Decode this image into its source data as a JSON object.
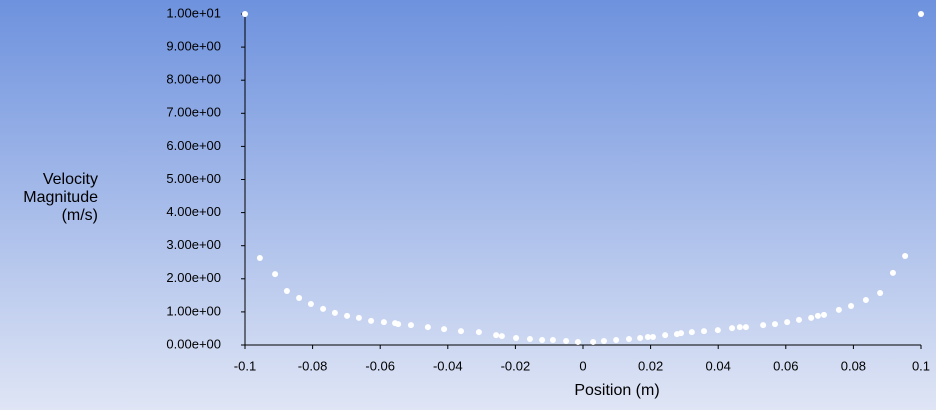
{
  "chart_data": {
    "type": "scatter",
    "xlabel": "Position (m)",
    "ylabel": "Velocity Magnitude (m/s)",
    "color": "#ffffff",
    "xlim": [
      -0.1,
      0.1
    ],
    "ylim": [
      0,
      10
    ],
    "xticks": [
      -0.1,
      -0.08,
      -0.06,
      -0.04,
      -0.02,
      0,
      0.02,
      0.04,
      0.06,
      0.08,
      0.1
    ],
    "yticks": [
      {
        "value": 0,
        "label": "0.00e+00"
      },
      {
        "value": 1,
        "label": "1.00e+00"
      },
      {
        "value": 2,
        "label": "2.00e+00"
      },
      {
        "value": 3,
        "label": "3.00e+00"
      },
      {
        "value": 4,
        "label": "4.00e+00"
      },
      {
        "value": 5,
        "label": "5.00e+00"
      },
      {
        "value": 6,
        "label": "6.00e+00"
      },
      {
        "value": 7,
        "label": "7.00e+00"
      },
      {
        "value": 8,
        "label": "8.00e+00"
      },
      {
        "value": 9,
        "label": "9.00e+00"
      },
      {
        "value": 10,
        "label": "1.00e+01"
      }
    ],
    "x": [
      -0.1,
      -0.0956,
      -0.0911,
      -0.0876,
      -0.084,
      -0.0805,
      -0.0769,
      -0.0734,
      -0.0698,
      -0.0663,
      -0.0627,
      -0.0589,
      -0.0556,
      -0.0547,
      -0.0509,
      -0.0459,
      -0.0411,
      -0.0361,
      -0.0308,
      -0.0257,
      -0.024,
      -0.0198,
      -0.0157,
      -0.0121,
      -0.0089,
      -0.005,
      -0.0015,
      0.003,
      0.0062,
      0.0098,
      0.0136,
      0.0169,
      0.0192,
      0.0207,
      0.0243,
      0.0278,
      0.029,
      0.0322,
      0.0358,
      0.0399,
      0.0441,
      0.0464,
      0.0482,
      0.0533,
      0.0568,
      0.0604,
      0.0639,
      0.0675,
      0.0695,
      0.0713,
      0.0757,
      0.0793,
      0.0837,
      0.0879,
      0.0917,
      0.0953,
      0.1
    ],
    "values": [
      10,
      2.63,
      2.14,
      1.63,
      1.42,
      1.24,
      1.09,
      0.97,
      0.88,
      0.82,
      0.73,
      0.69,
      0.66,
      0.63,
      0.6,
      0.54,
      0.48,
      0.42,
      0.39,
      0.3,
      0.27,
      0.21,
      0.18,
      0.15,
      0.15,
      0.12,
      0.09,
      0.09,
      0.12,
      0.15,
      0.18,
      0.21,
      0.24,
      0.24,
      0.3,
      0.33,
      0.36,
      0.39,
      0.42,
      0.45,
      0.51,
      0.54,
      0.54,
      0.6,
      0.63,
      0.69,
      0.76,
      0.82,
      0.88,
      0.91,
      1.06,
      1.18,
      1.36,
      1.57,
      2.18,
      2.69,
      10
    ]
  }
}
